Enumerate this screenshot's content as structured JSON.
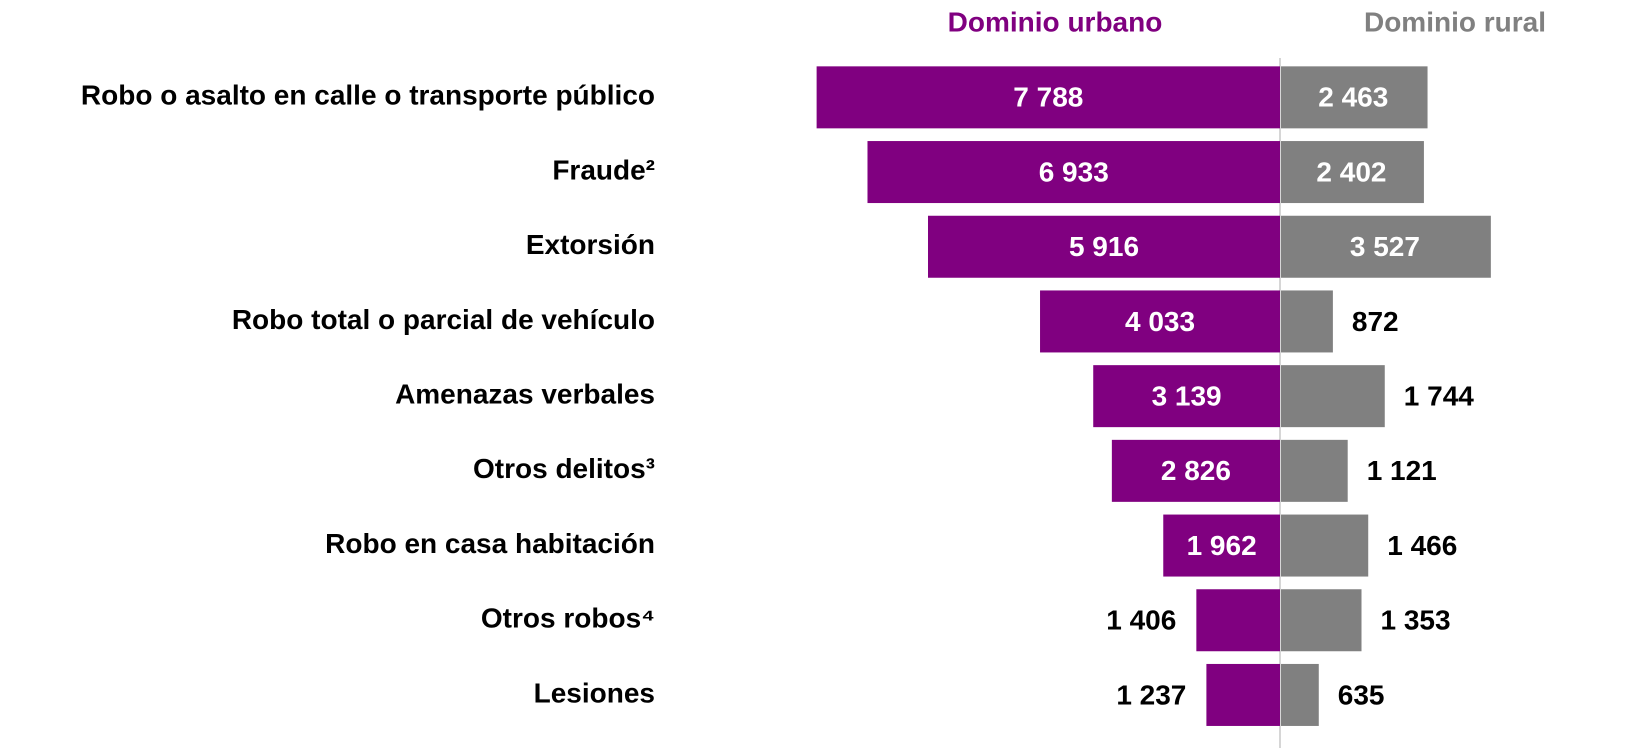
{
  "chart_data": {
    "type": "butterfly_bar",
    "categories": [
      "Robo o asalto en calle o transporte público",
      "Fraude²",
      "Extorsión",
      "Robo total o parcial de vehículo",
      "Amenazas verbales",
      "Otros delitos³",
      "Robo en casa habitación",
      "Otros robos⁴",
      "Lesiones"
    ],
    "series": [
      {
        "name": "Dominio urbano",
        "color": "#800080",
        "values": [
          7788,
          6933,
          5916,
          4033,
          3139,
          2826,
          1962,
          1406,
          1237
        ],
        "value_labels": [
          "7 788",
          "6 933",
          "5 916",
          "4 033",
          "3 139",
          "2 826",
          "1 962",
          "1 406",
          "1 237"
        ]
      },
      {
        "name": "Dominio rural",
        "color": "#808080",
        "values": [
          2463,
          2402,
          3527,
          872,
          1744,
          1121,
          1466,
          1353,
          635
        ],
        "value_labels": [
          "2 463",
          "2 402",
          "3 527",
          "872",
          "1 744",
          "1 121",
          "1 466",
          "1 353",
          "635"
        ]
      }
    ]
  }
}
